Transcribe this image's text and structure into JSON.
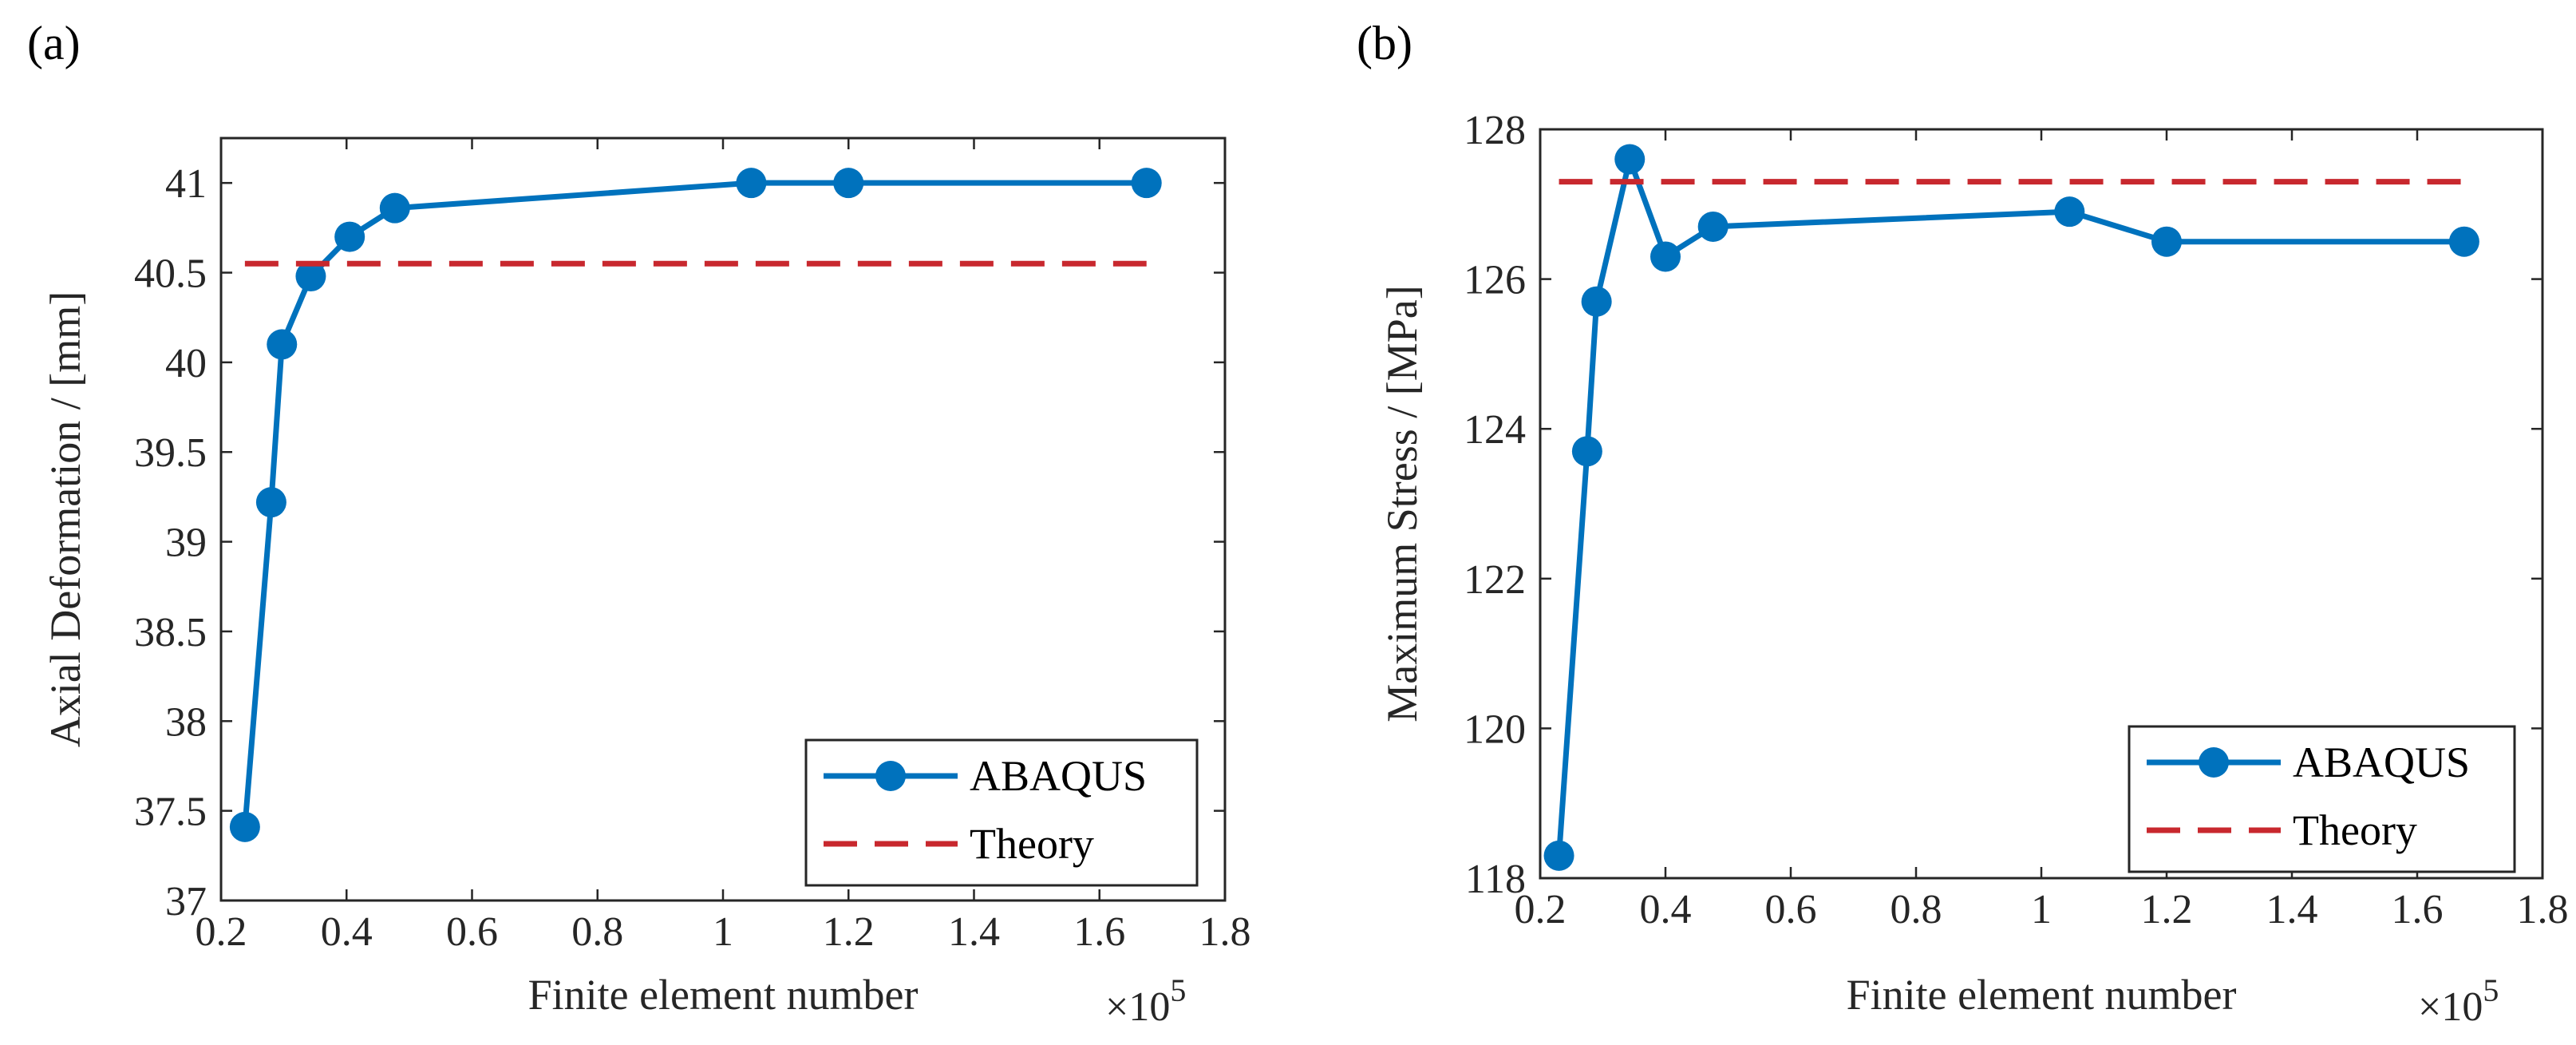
{
  "chart_data": [
    {
      "type": "line",
      "panel_label": "(a)",
      "title": "",
      "xlabel": "Finite element number",
      "ylabel": "Axial Deformation / [mm]",
      "x_multiplier": "×10",
      "x_multiplier_exponent": "5",
      "xlim": [
        0.2,
        1.8
      ],
      "ylim": [
        37,
        41.25
      ],
      "x_ticks": [
        0.2,
        0.4,
        0.6,
        0.8,
        1,
        1.2,
        1.4,
        1.6,
        1.8
      ],
      "x_tick_labels": [
        "0.2",
        "0.4",
        "0.6",
        "0.8",
        "1",
        "1.2",
        "1.4",
        "1.6",
        "1.8"
      ],
      "y_ticks": [
        37,
        37.5,
        38,
        38.5,
        39,
        39.5,
        40,
        40.5,
        41
      ],
      "y_tick_labels": [
        "37",
        "37.5",
        "38",
        "38.5",
        "39",
        "39.5",
        "40",
        "40.5",
        "41"
      ],
      "grid": false,
      "legend_position": "bottom-right",
      "series": [
        {
          "name": "ABAQUS",
          "style": "solid-marker",
          "color": "#0072BD",
          "x": [
            0.238,
            0.28,
            0.297,
            0.343,
            0.405,
            0.477,
            1.045,
            1.2,
            1.675
          ],
          "y": [
            37.41,
            39.22,
            40.1,
            40.48,
            40.7,
            40.86,
            41.0,
            41.0,
            41.0
          ]
        },
        {
          "name": "Theory",
          "style": "dashed",
          "color": "#C8282E",
          "x": [
            0.238,
            1.675
          ],
          "y": [
            40.55,
            40.55
          ]
        }
      ]
    },
    {
      "type": "line",
      "panel_label": "(b)",
      "title": "",
      "xlabel": "Finite element number",
      "ylabel": "Maximum Stress / [MPa]",
      "x_multiplier": "×10",
      "x_multiplier_exponent": "5",
      "xlim": [
        0.2,
        1.8
      ],
      "ylim": [
        118,
        128
      ],
      "x_ticks": [
        0.2,
        0.4,
        0.6,
        0.8,
        1,
        1.2,
        1.4,
        1.6,
        1.8
      ],
      "x_tick_labels": [
        "0.2",
        "0.4",
        "0.6",
        "0.8",
        "1",
        "1.2",
        "1.4",
        "1.6",
        "1.8"
      ],
      "y_ticks": [
        118,
        120,
        122,
        124,
        126,
        128
      ],
      "y_tick_labels": [
        "118",
        "120",
        "122",
        "124",
        "126",
        "128"
      ],
      "grid": false,
      "legend_position": "bottom-right",
      "series": [
        {
          "name": "ABAQUS",
          "style": "solid-marker",
          "color": "#0072BD",
          "x": [
            0.23,
            0.275,
            0.29,
            0.343,
            0.4,
            0.476,
            1.045,
            1.2,
            1.675
          ],
          "y": [
            118.3,
            123.7,
            125.7,
            127.6,
            126.3,
            126.7,
            126.9,
            126.5,
            126.5
          ]
        },
        {
          "name": "Theory",
          "style": "dashed",
          "color": "#C8282E",
          "x": [
            0.23,
            1.675
          ],
          "y": [
            127.3,
            127.3
          ]
        }
      ]
    }
  ]
}
